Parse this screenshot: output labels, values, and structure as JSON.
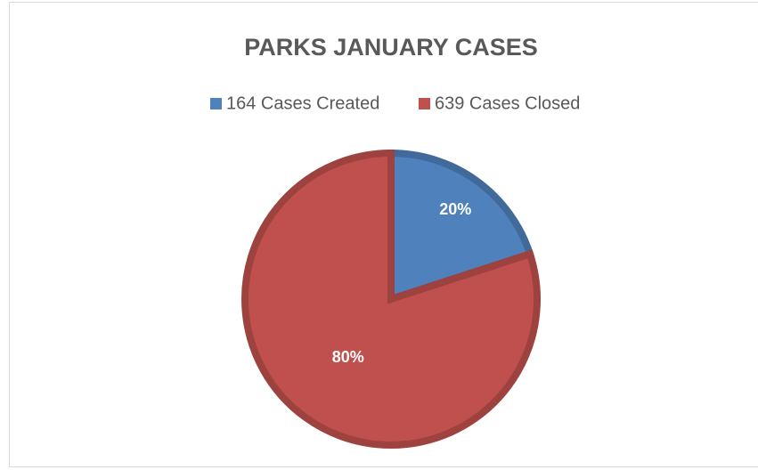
{
  "chart_data": {
    "type": "pie",
    "title": "PARKS JANUARY CASES",
    "categories": [
      "164 Cases Created",
      "639 Cases Closed"
    ],
    "values": [
      20,
      80
    ],
    "value_labels": [
      "20%",
      "80%"
    ],
    "colors": [
      "#4f81bd",
      "#c0504d"
    ],
    "legend": "top"
  }
}
